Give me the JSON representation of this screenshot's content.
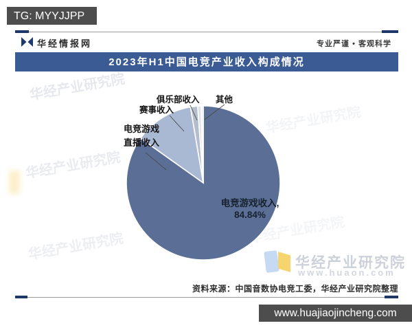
{
  "overlays": {
    "top_left_bar": "TG: MYYJJPP",
    "bottom_right_bar": "www.huajiaojincheng.com"
  },
  "header": {
    "site_name": "华经情报网",
    "slogan": "专业严谨 • 客观科学"
  },
  "title": "2023年H1中国电竞产业收入构成情况",
  "source": "资料来源：中国音数协电竞工委，华经产业研究院整理",
  "watermark": {
    "brand": "华经产业研究院",
    "url": "www.huaon.com"
  },
  "chart_data": {
    "type": "pie",
    "title": "2023年H1中国电竞产业收入构成情况",
    "unit": "%",
    "start_angle_deg": 0,
    "direction": "clockwise",
    "legend_position": "none",
    "slices": [
      {
        "name": "电竞游戏收入",
        "value": 84.84,
        "label": "电竞游戏收入,\n84.84%",
        "color": "#5a6e96"
      },
      {
        "name": "电竞游戏直播收入",
        "value": 12.5,
        "label": "电竞游戏\n直播收入",
        "color": "#aab9d3"
      },
      {
        "name": "赛事收入",
        "value": 1.5,
        "label": "赛事收入",
        "color": "#b4bdcb"
      },
      {
        "name": "俱乐部收入",
        "value": 0.7,
        "label": "俱乐部收入",
        "color": "#dbe0e9"
      },
      {
        "name": "其他",
        "value": 0.46,
        "label": "其他",
        "color": "#eef0f5"
      }
    ]
  }
}
